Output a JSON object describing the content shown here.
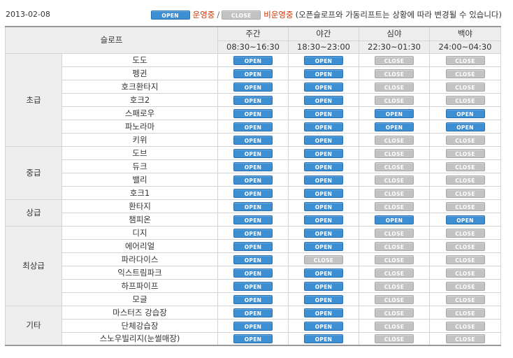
{
  "date": "2013-02-08",
  "legend": {
    "open_badge": "OPEN",
    "open_text": "운영중",
    "separator": "/",
    "close_badge": "CLOSE",
    "close_text": "비운영중",
    "note": "(오픈슬로프와 가동리프트는 상황에 따라 변경될 수 있습니다)"
  },
  "header": {
    "slope_label": "슬로프",
    "periods": [
      {
        "name": "주간",
        "time": "08:30~16:30"
      },
      {
        "name": "야간",
        "time": "18:30~23:00"
      },
      {
        "name": "심야",
        "time": "22:30~01:30"
      },
      {
        "name": "백야",
        "time": "24:00~04:30"
      }
    ]
  },
  "status_labels": {
    "open": "OPEN",
    "close": "CLOSE"
  },
  "colors": {
    "open_badge": "#3d8fd4",
    "close_badge": "#c3c3c3",
    "legend_text": "#cc3300",
    "header_bg": "#eeeeee"
  },
  "categories": [
    {
      "name": "초급",
      "slopes": [
        {
          "name": "도도",
          "status": [
            "open",
            "open",
            "close",
            "close"
          ]
        },
        {
          "name": "펭귄",
          "status": [
            "open",
            "open",
            "close",
            "close"
          ]
        },
        {
          "name": "호크환타지",
          "status": [
            "open",
            "open",
            "close",
            "close"
          ]
        },
        {
          "name": "호크2",
          "status": [
            "open",
            "open",
            "close",
            "close"
          ]
        },
        {
          "name": "스패로우",
          "status": [
            "open",
            "open",
            "open",
            "open"
          ]
        },
        {
          "name": "파노라마",
          "status": [
            "open",
            "open",
            "open",
            "open"
          ]
        },
        {
          "name": "키위",
          "status": [
            "open",
            "open",
            "close",
            "close"
          ]
        }
      ]
    },
    {
      "name": "중급",
      "slopes": [
        {
          "name": "도브",
          "status": [
            "open",
            "open",
            "close",
            "close"
          ]
        },
        {
          "name": "듀크",
          "status": [
            "open",
            "open",
            "close",
            "close"
          ]
        },
        {
          "name": "밸리",
          "status": [
            "open",
            "open",
            "close",
            "close"
          ]
        },
        {
          "name": "호크1",
          "status": [
            "open",
            "open",
            "close",
            "close"
          ]
        }
      ]
    },
    {
      "name": "상급",
      "slopes": [
        {
          "name": "환타지",
          "status": [
            "open",
            "open",
            "close",
            "close"
          ]
        },
        {
          "name": "챔피온",
          "status": [
            "open",
            "open",
            "open",
            "open"
          ]
        }
      ]
    },
    {
      "name": "최상급",
      "slopes": [
        {
          "name": "디지",
          "status": [
            "open",
            "open",
            "close",
            "close"
          ]
        },
        {
          "name": "에어리얼",
          "status": [
            "open",
            "open",
            "close",
            "close"
          ]
        },
        {
          "name": "파라다이스",
          "status": [
            "open",
            "close",
            "close",
            "close"
          ]
        },
        {
          "name": "익스트림파크",
          "status": [
            "open",
            "open",
            "close",
            "close"
          ]
        },
        {
          "name": "하프파이프",
          "status": [
            "open",
            "open",
            "close",
            "close"
          ]
        },
        {
          "name": "모글",
          "status": [
            "open",
            "open",
            "close",
            "close"
          ]
        }
      ]
    },
    {
      "name": "기타",
      "slopes": [
        {
          "name": "마스터즈 강습장",
          "status": [
            "open",
            "open",
            "close",
            "close"
          ]
        },
        {
          "name": "단체강습장",
          "status": [
            "open",
            "open",
            "close",
            "close"
          ]
        },
        {
          "name": "스노우빌리지(눈썰매장)",
          "status": [
            "open",
            "open",
            "close",
            "close"
          ]
        }
      ]
    }
  ]
}
